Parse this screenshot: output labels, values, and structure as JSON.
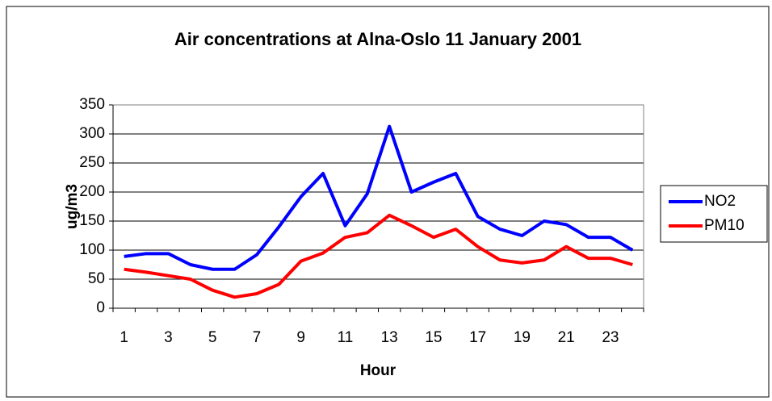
{
  "chart_data": {
    "type": "line",
    "title": "Air concentrations at Alna-Oslo 11 January 2001",
    "x_label": "Hour",
    "y_label": "ug/m3",
    "categories": [
      "1",
      null,
      "3",
      null,
      "5",
      null,
      "7",
      null,
      "9",
      null,
      "11",
      null,
      "13",
      null,
      "15",
      null,
      "17",
      null,
      "19",
      null,
      "21",
      null,
      "23",
      null
    ],
    "series": [
      {
        "name": "NO2",
        "color": "#0000ff",
        "values": [
          89,
          94,
          94,
          75,
          67,
          67,
          92,
          140,
          192,
          232,
          142,
          197,
          313,
          200,
          217,
          232,
          158,
          136,
          125,
          150,
          144,
          122,
          122,
          100
        ]
      },
      {
        "name": "PM10",
        "color": "#ff0000",
        "values": [
          67,
          62,
          56,
          50,
          31,
          19,
          25,
          41,
          81,
          95,
          122,
          130,
          160,
          142,
          122,
          136,
          106,
          83,
          78,
          83,
          106,
          86,
          86,
          75
        ]
      }
    ],
    "ylim": [
      0,
      350
    ],
    "yticks": [
      0,
      50,
      100,
      150,
      200,
      250,
      300,
      350
    ],
    "grid": true,
    "legend": "right"
  }
}
